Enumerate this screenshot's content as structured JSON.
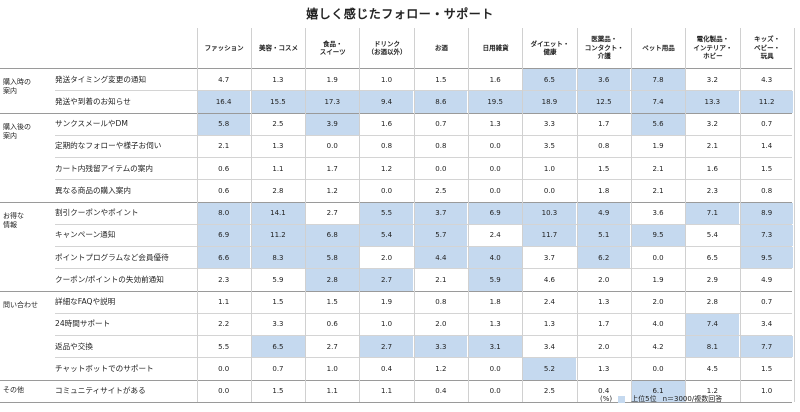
{
  "title": "嬉しく感じたフォロー・サポート",
  "footer": {
    "unit": "(%)",
    "legend": "上位5位",
    "note": "n＝3000/複数回答"
  },
  "chart_data": {
    "type": "table",
    "columns": [
      "ファッション",
      "美容・コスメ",
      "食品・\nスイーツ",
      "ドリンク\n（お酒以外）",
      "お酒",
      "日用雑貨",
      "ダイエット・\n健康",
      "医薬品・\nコンタクト・\n介護",
      "ペット用品",
      "電化製品・\nインテリア・\nホビー",
      "キッズ・\nベビー・\n玩具"
    ],
    "groups": [
      {
        "label": "購入時の\n案内",
        "rows": [
          {
            "label": "発送タイミング変更の通知",
            "values": [
              "4.7",
              "1.3",
              "1.9",
              "1.0",
              "1.5",
              "1.6",
              "6.5",
              "3.6",
              "7.8",
              "3.2",
              "4.3"
            ],
            "top5": [
              6,
              7,
              8
            ]
          },
          {
            "label": "発送や到着のお知らせ",
            "values": [
              "16.4",
              "15.5",
              "17.3",
              "9.4",
              "8.6",
              "19.5",
              "18.9",
              "12.5",
              "7.4",
              "13.3",
              "11.2"
            ],
            "top5": [
              0,
              1,
              2,
              3,
              4,
              5,
              6,
              7,
              8,
              9,
              10
            ]
          }
        ]
      },
      {
        "label": "購入後の\n案内",
        "rows": [
          {
            "label": "サンクスメールやDM",
            "values": [
              "5.8",
              "2.5",
              "3.9",
              "1.6",
              "0.7",
              "1.3",
              "3.3",
              "1.7",
              "5.6",
              "3.2",
              "0.7"
            ],
            "top5": [
              0,
              2,
              8
            ]
          },
          {
            "label": "定期的なフォローや様子お伺い",
            "values": [
              "2.1",
              "1.3",
              "0.0",
              "0.8",
              "0.8",
              "0.0",
              "3.5",
              "0.8",
              "1.9",
              "2.1",
              "1.4"
            ],
            "top5": []
          },
          {
            "label": "カート内残留アイテムの案内",
            "values": [
              "0.6",
              "1.1",
              "1.7",
              "1.2",
              "0.0",
              "0.0",
              "1.0",
              "1.5",
              "2.1",
              "1.6",
              "1.5"
            ],
            "top5": []
          },
          {
            "label": "異なる商品の購入案内",
            "values": [
              "0.6",
              "2.8",
              "1.2",
              "0.0",
              "2.5",
              "0.0",
              "0.0",
              "1.8",
              "2.1",
              "2.3",
              "0.8"
            ],
            "top5": []
          }
        ]
      },
      {
        "label": "お得な\n情報",
        "rows": [
          {
            "label": "割引クーポンやポイント",
            "values": [
              "8.0",
              "14.1",
              "2.7",
              "5.5",
              "3.7",
              "6.9",
              "10.3",
              "4.9",
              "3.6",
              "7.1",
              "8.9"
            ],
            "top5": [
              0,
              1,
              3,
              4,
              5,
              6,
              7,
              9,
              10
            ]
          },
          {
            "label": "キャンペーン通知",
            "values": [
              "6.9",
              "11.2",
              "6.8",
              "5.4",
              "5.7",
              "2.4",
              "11.7",
              "5.1",
              "9.5",
              "5.4",
              "7.3"
            ],
            "top5": [
              0,
              1,
              2,
              3,
              4,
              6,
              7,
              8,
              10
            ]
          },
          {
            "label": "ポイントプログラムなど会員優待",
            "values": [
              "6.6",
              "8.3",
              "5.8",
              "2.0",
              "4.4",
              "4.0",
              "3.7",
              "6.2",
              "0.0",
              "6.5",
              "9.5"
            ],
            "top5": [
              0,
              1,
              2,
              4,
              5,
              7,
              10
            ]
          },
          {
            "label": "クーポン/ポイントの失効前通知",
            "values": [
              "2.3",
              "5.9",
              "2.8",
              "2.7",
              "2.1",
              "5.9",
              "4.6",
              "2.0",
              "1.9",
              "2.9",
              "4.9"
            ],
            "top5": [
              2,
              3,
              5
            ]
          }
        ]
      },
      {
        "label": "問い合わせ",
        "rows": [
          {
            "label": "詳細なFAQや説明",
            "values": [
              "1.1",
              "1.5",
              "1.5",
              "1.9",
              "0.8",
              "1.8",
              "2.4",
              "1.3",
              "2.0",
              "2.8",
              "0.7"
            ],
            "top5": []
          },
          {
            "label": "24時間サポート",
            "values": [
              "2.2",
              "3.3",
              "0.6",
              "1.0",
              "2.0",
              "1.3",
              "1.3",
              "1.7",
              "4.0",
              "7.4",
              "3.4"
            ],
            "top5": [
              9
            ]
          },
          {
            "label": "返品や交換",
            "values": [
              "5.5",
              "6.5",
              "2.7",
              "2.7",
              "3.3",
              "3.1",
              "3.4",
              "2.0",
              "4.2",
              "8.1",
              "7.7"
            ],
            "top5": [
              1,
              3,
              4,
              5,
              9,
              10
            ]
          },
          {
            "label": "チャットボットでのサポート",
            "values": [
              "0.0",
              "0.7",
              "1.0",
              "0.4",
              "1.2",
              "0.0",
              "5.2",
              "1.3",
              "0.0",
              "4.5",
              "1.5"
            ],
            "top5": [
              6
            ]
          }
        ]
      },
      {
        "label": "その他",
        "rows": [
          {
            "label": "コミュニティサイトがある",
            "values": [
              "0.0",
              "1.5",
              "1.1",
              "1.1",
              "0.4",
              "0.0",
              "2.5",
              "0.4",
              "6.1",
              "1.2",
              "1.0"
            ],
            "top5": [
              8
            ]
          }
        ]
      }
    ]
  }
}
